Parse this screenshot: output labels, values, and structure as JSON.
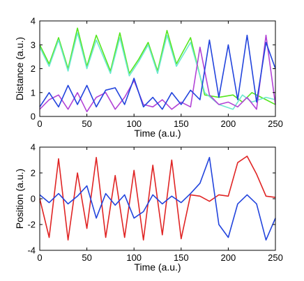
{
  "chart_data": [
    {
      "type": "line",
      "xlabel": "Time (a.u.)",
      "ylabel": "Distance (a.u.)",
      "xlim": [
        0,
        250
      ],
      "ylim": [
        0,
        4
      ],
      "xticks": [
        0,
        50,
        100,
        150,
        200,
        250
      ],
      "yticks": [
        0,
        1,
        2,
        3,
        4
      ],
      "grid": false,
      "series": [
        {
          "color": "#55e61e",
          "x": [
            0,
            10,
            20,
            30,
            40,
            50,
            60,
            75,
            85,
            95,
            105,
            115,
            125,
            135,
            145,
            160,
            175,
            190,
            205,
            215,
            225,
            240,
            250
          ],
          "y": [
            3.0,
            2.2,
            3.3,
            2.0,
            3.7,
            2.1,
            3.4,
            1.9,
            3.5,
            1.8,
            2.4,
            3.1,
            1.9,
            3.6,
            2.2,
            3.3,
            0.9,
            0.8,
            0.9,
            0.6,
            1.0,
            0.7,
            0.5
          ]
        },
        {
          "color": "#6de8cf",
          "x": [
            0,
            10,
            20,
            30,
            40,
            50,
            60,
            75,
            85,
            95,
            105,
            115,
            125,
            135,
            145,
            160,
            175,
            190,
            205,
            215,
            225,
            240,
            250
          ],
          "y": [
            2.9,
            2.1,
            3.2,
            1.9,
            3.5,
            2.0,
            3.2,
            1.8,
            3.3,
            1.7,
            2.3,
            3.0,
            1.8,
            3.4,
            2.1,
            3.1,
            1.0,
            0.5,
            0.3,
            0.9,
            0.6,
            0.8,
            0.7
          ]
        },
        {
          "color": "#b243d6",
          "x": [
            0,
            10,
            20,
            30,
            40,
            50,
            60,
            70,
            80,
            90,
            100,
            110,
            120,
            130,
            140,
            150,
            160,
            170,
            180,
            190,
            200,
            210,
            220,
            230,
            240,
            250
          ],
          "y": [
            0.3,
            0.7,
            0.9,
            0.3,
            1.0,
            0.2,
            0.8,
            1.0,
            0.3,
            0.8,
            1.5,
            0.5,
            0.4,
            0.7,
            0.3,
            0.6,
            0.4,
            2.9,
            0.9,
            0.5,
            0.6,
            0.4,
            0.8,
            0.3,
            3.4,
            0.5
          ]
        },
        {
          "color": "#2244dd",
          "x": [
            0,
            10,
            20,
            30,
            40,
            50,
            60,
            70,
            80,
            90,
            100,
            110,
            120,
            130,
            140,
            150,
            160,
            170,
            180,
            190,
            200,
            210,
            220,
            230,
            240,
            250
          ],
          "y": [
            0.4,
            1.0,
            0.4,
            1.3,
            0.5,
            1.3,
            0.4,
            1.1,
            1.2,
            0.5,
            1.6,
            0.4,
            0.8,
            0.3,
            1.0,
            0.5,
            1.1,
            0.7,
            3.2,
            0.8,
            3.0,
            0.7,
            3.4,
            0.6,
            3.1,
            2.0
          ]
        }
      ]
    },
    {
      "type": "line",
      "xlabel": "Time (a.u.)",
      "ylabel": "Position (a.u.)",
      "xlim": [
        0,
        250
      ],
      "ylim": [
        -4,
        4
      ],
      "xticks": [
        0,
        50,
        100,
        150,
        200,
        250
      ],
      "yticks": [
        -4,
        -2,
        0,
        2,
        4
      ],
      "grid": false,
      "series": [
        {
          "color": "#e02424",
          "x": [
            0,
            10,
            20,
            30,
            40,
            50,
            60,
            70,
            80,
            90,
            100,
            110,
            120,
            130,
            140,
            150,
            160,
            170,
            180,
            190,
            200,
            210,
            220,
            230,
            240,
            250
          ],
          "y": [
            0,
            -3.0,
            3.1,
            -3.2,
            2.0,
            -2.3,
            3.2,
            -3.0,
            1.8,
            -3.0,
            2.2,
            -3.2,
            2.6,
            -2.8,
            3.0,
            -3.1,
            0.3,
            0.2,
            -0.2,
            0.3,
            0.2,
            2.8,
            3.3,
            1.9,
            0.2,
            0.1
          ]
        },
        {
          "color": "#2244dd",
          "x": [
            0,
            10,
            20,
            30,
            40,
            50,
            60,
            70,
            80,
            90,
            100,
            110,
            120,
            130,
            140,
            150,
            160,
            170,
            180,
            190,
            200,
            210,
            220,
            230,
            240,
            250
          ],
          "y": [
            0.3,
            -0.3,
            0.4,
            -0.4,
            0.2,
            1.0,
            -1.5,
            0.4,
            -0.5,
            0.3,
            -1.5,
            -1.0,
            0.3,
            -0.4,
            0.2,
            -0.3,
            0.4,
            1.2,
            3.2,
            -2.0,
            -3.0,
            -0.4,
            0.3,
            -0.4,
            -3.2,
            -1.5
          ]
        }
      ]
    }
  ]
}
